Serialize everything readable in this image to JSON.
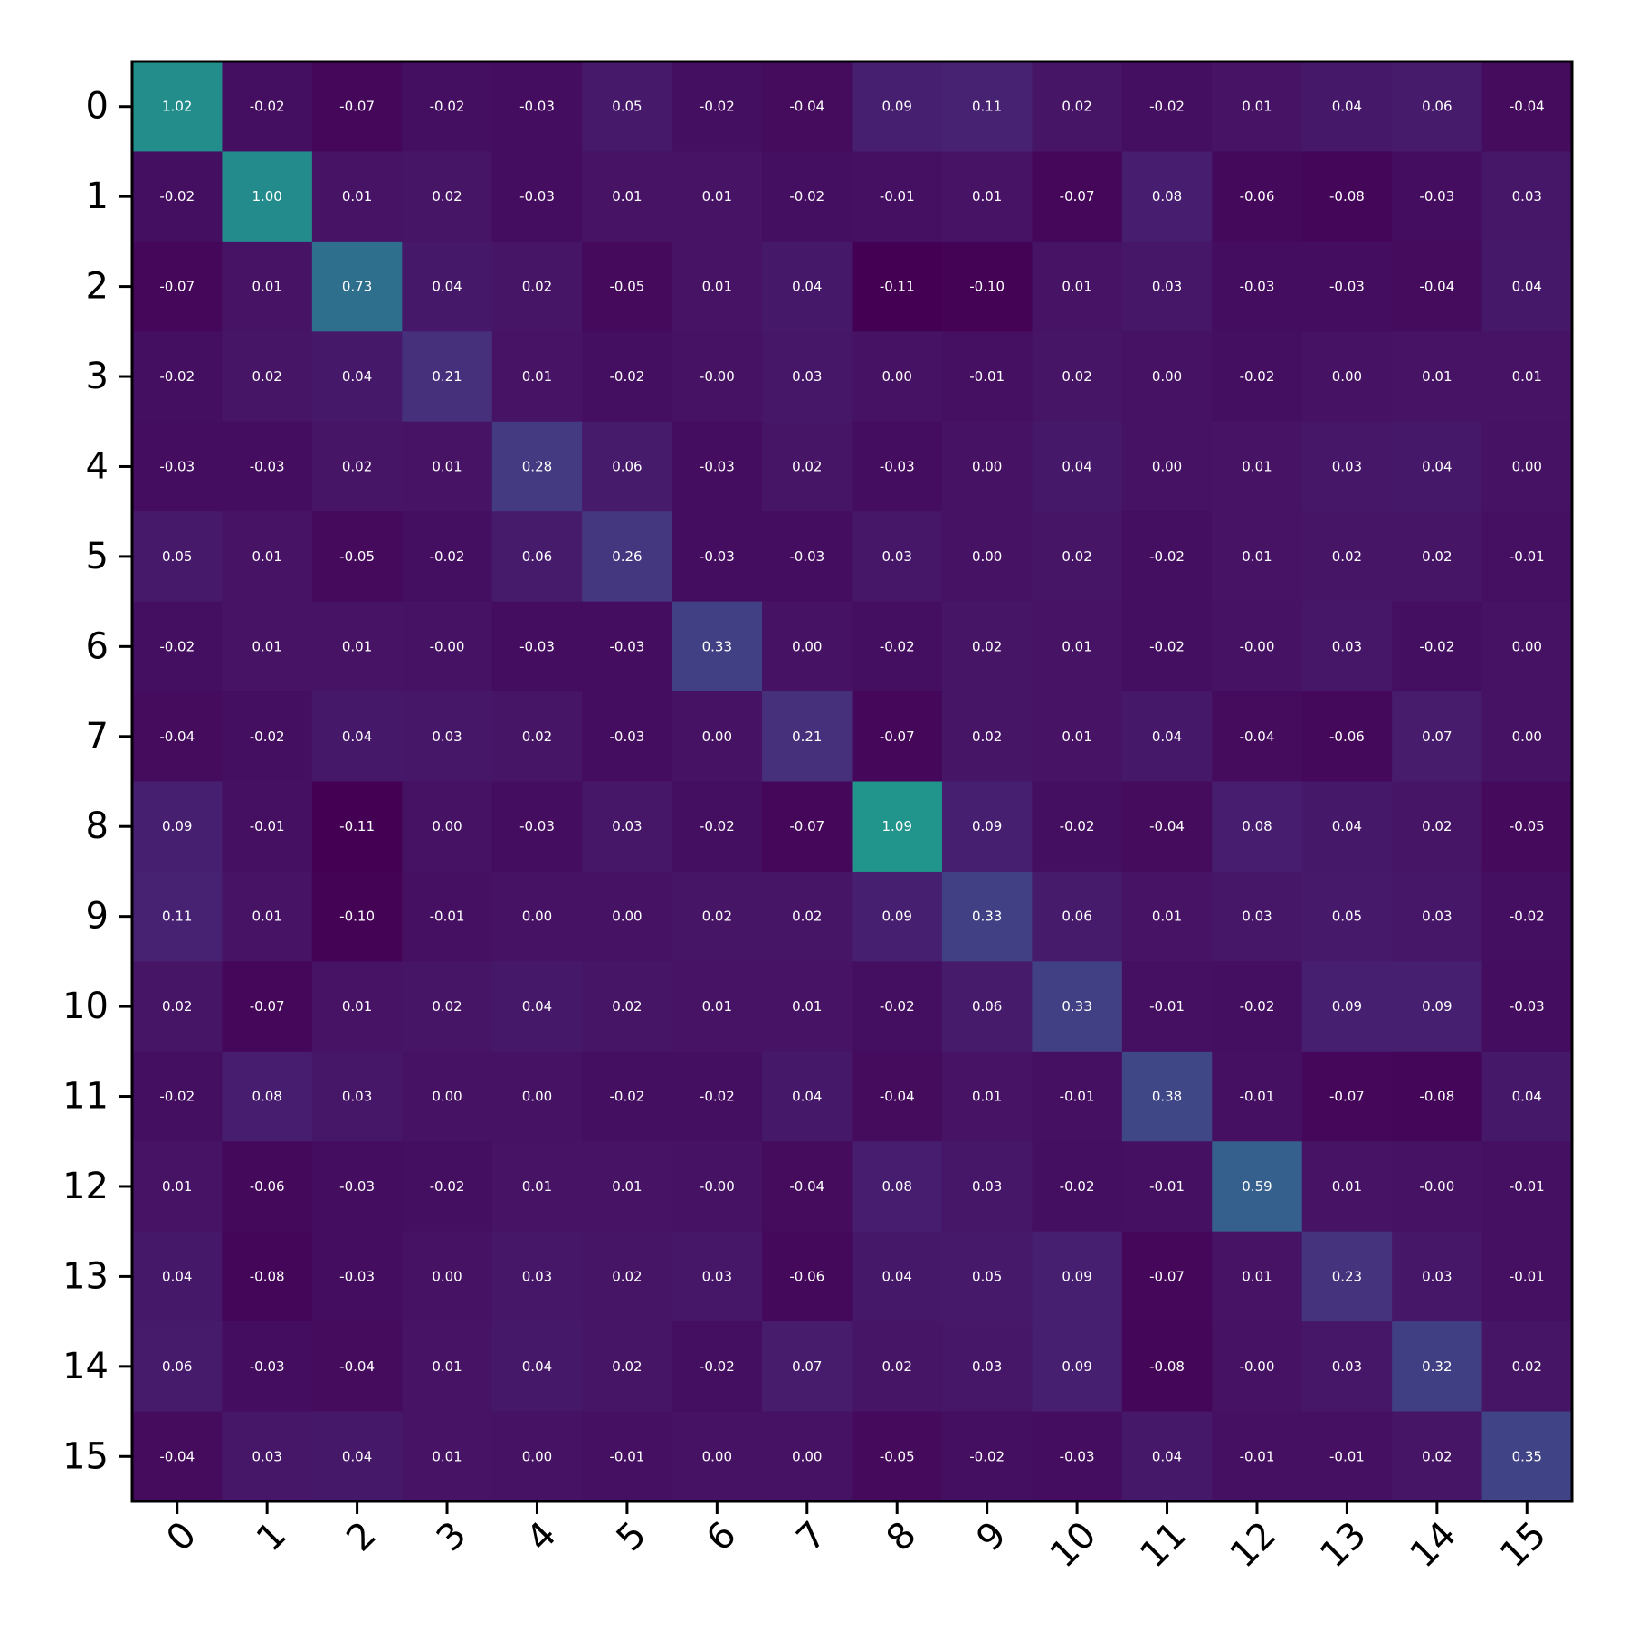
{
  "chart_data": {
    "type": "heatmap",
    "title": "",
    "xlabel": "",
    "ylabel": "",
    "x_tick_labels": [
      "0",
      "1",
      "2",
      "3",
      "4",
      "5",
      "6",
      "7",
      "8",
      "9",
      "10",
      "11",
      "12",
      "13",
      "14",
      "15"
    ],
    "y_tick_labels": [
      "0",
      "1",
      "2",
      "3",
      "4",
      "5",
      "6",
      "7",
      "8",
      "9",
      "10",
      "11",
      "12",
      "13",
      "14",
      "15"
    ],
    "x_tick_rotation_deg": -45,
    "colormap": "viridis",
    "value_range": [
      -0.11,
      2.2
    ],
    "grid": false,
    "values": [
      [
        1.02,
        -0.02,
        -0.07,
        -0.02,
        -0.03,
        0.05,
        -0.02,
        -0.04,
        0.09,
        0.11,
        0.02,
        -0.02,
        0.01,
        0.04,
        0.06,
        -0.04
      ],
      [
        -0.02,
        1.0,
        0.01,
        0.02,
        -0.03,
        0.01,
        0.01,
        -0.02,
        -0.01,
        0.01,
        -0.07,
        0.08,
        -0.06,
        -0.08,
        -0.03,
        0.03
      ],
      [
        -0.07,
        0.01,
        0.73,
        0.04,
        0.02,
        -0.05,
        0.01,
        0.04,
        -0.11,
        -0.1,
        0.01,
        0.03,
        -0.03,
        -0.03,
        -0.04,
        0.04
      ],
      [
        -0.02,
        0.02,
        0.04,
        0.21,
        0.01,
        -0.02,
        -0.0,
        0.03,
        0.0,
        -0.01,
        0.02,
        0.0,
        -0.02,
        0.0,
        0.01,
        0.01
      ],
      [
        -0.03,
        -0.03,
        0.02,
        0.01,
        0.28,
        0.06,
        -0.03,
        0.02,
        -0.03,
        0.0,
        0.04,
        0.0,
        0.01,
        0.03,
        0.04,
        0.0
      ],
      [
        0.05,
        0.01,
        -0.05,
        -0.02,
        0.06,
        0.26,
        -0.03,
        -0.03,
        0.03,
        0.0,
        0.02,
        -0.02,
        0.01,
        0.02,
        0.02,
        -0.01
      ],
      [
        -0.02,
        0.01,
        0.01,
        -0.0,
        -0.03,
        -0.03,
        0.33,
        0.0,
        -0.02,
        0.02,
        0.01,
        -0.02,
        -0.0,
        0.03,
        -0.02,
        0.0
      ],
      [
        -0.04,
        -0.02,
        0.04,
        0.03,
        0.02,
        -0.03,
        0.0,
        0.21,
        -0.07,
        0.02,
        0.01,
        0.04,
        -0.04,
        -0.06,
        0.07,
        0.0
      ],
      [
        0.09,
        -0.01,
        -0.11,
        0.0,
        -0.03,
        0.03,
        -0.02,
        -0.07,
        1.09,
        0.09,
        -0.02,
        -0.04,
        0.08,
        0.04,
        0.02,
        -0.05
      ],
      [
        0.11,
        0.01,
        -0.1,
        -0.01,
        0.0,
        0.0,
        0.02,
        0.02,
        0.09,
        0.33,
        0.06,
        0.01,
        0.03,
        0.05,
        0.03,
        -0.02
      ],
      [
        0.02,
        -0.07,
        0.01,
        0.02,
        0.04,
        0.02,
        0.01,
        0.01,
        -0.02,
        0.06,
        0.33,
        -0.01,
        -0.02,
        0.09,
        0.09,
        -0.03
      ],
      [
        -0.02,
        0.08,
        0.03,
        0.0,
        0.0,
        -0.02,
        -0.02,
        0.04,
        -0.04,
        0.01,
        -0.01,
        0.38,
        -0.01,
        -0.07,
        -0.08,
        0.04
      ],
      [
        0.01,
        -0.06,
        -0.03,
        -0.02,
        0.01,
        0.01,
        -0.0,
        -0.04,
        0.08,
        0.03,
        -0.02,
        -0.01,
        0.59,
        0.01,
        -0.0,
        -0.01
      ],
      [
        0.04,
        -0.08,
        -0.03,
        0.0,
        0.03,
        0.02,
        0.03,
        -0.06,
        0.04,
        0.05,
        0.09,
        -0.07,
        0.01,
        0.23,
        0.03,
        -0.01
      ],
      [
        0.06,
        -0.03,
        -0.04,
        0.01,
        0.04,
        0.02,
        -0.02,
        0.07,
        0.02,
        0.03,
        0.09,
        -0.08,
        -0.0,
        0.03,
        0.32,
        0.02
      ],
      [
        -0.04,
        0.03,
        0.04,
        0.01,
        0.0,
        -0.01,
        0.0,
        0.0,
        -0.05,
        -0.02,
        -0.03,
        0.04,
        -0.01,
        -0.01,
        0.02,
        0.35
      ]
    ]
  }
}
